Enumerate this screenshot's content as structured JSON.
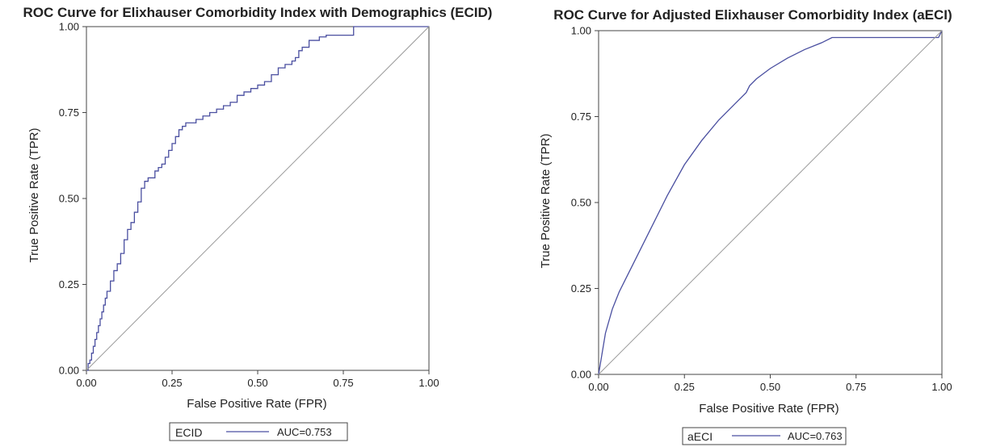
{
  "chart_data": [
    {
      "type": "line",
      "title": "ROC Curve for Elixhauser Comorbidity Index with Demographics (ECID)",
      "xlabel": "False Positive Rate (FPR)",
      "ylabel": "True Positive Rate (TPR)",
      "xlim": [
        0,
        1
      ],
      "ylim": [
        0,
        1
      ],
      "xticks": [
        "0.00",
        "0.25",
        "0.50",
        "0.75",
        "1.00"
      ],
      "yticks": [
        "0.00",
        "0.25",
        "0.50",
        "0.75",
        "1.00"
      ],
      "grid": false,
      "legend_placement": "bottom",
      "series": [
        {
          "name": "ECID",
          "color": "#4a4fa0",
          "step": true,
          "x": [
            0,
            0.005,
            0.01,
            0.015,
            0.02,
            0.025,
            0.03,
            0.035,
            0.04,
            0.045,
            0.05,
            0.055,
            0.06,
            0.07,
            0.08,
            0.09,
            0.1,
            0.11,
            0.12,
            0.13,
            0.14,
            0.15,
            0.16,
            0.17,
            0.18,
            0.19,
            0.2,
            0.21,
            0.22,
            0.23,
            0.24,
            0.25,
            0.26,
            0.27,
            0.28,
            0.29,
            0.3,
            0.31,
            0.32,
            0.34,
            0.36,
            0.38,
            0.4,
            0.42,
            0.44,
            0.46,
            0.48,
            0.5,
            0.52,
            0.54,
            0.56,
            0.58,
            0.6,
            0.61,
            0.62,
            0.63,
            0.65,
            0.68,
            0.7,
            0.74,
            0.77,
            0.78,
            0.8,
            0.9,
            1.0
          ],
          "y": [
            0,
            0.02,
            0.03,
            0.05,
            0.07,
            0.09,
            0.11,
            0.13,
            0.15,
            0.17,
            0.19,
            0.21,
            0.23,
            0.26,
            0.29,
            0.31,
            0.34,
            0.38,
            0.41,
            0.43,
            0.46,
            0.49,
            0.53,
            0.55,
            0.56,
            0.56,
            0.58,
            0.59,
            0.6,
            0.62,
            0.64,
            0.66,
            0.68,
            0.7,
            0.71,
            0.72,
            0.72,
            0.72,
            0.73,
            0.74,
            0.75,
            0.76,
            0.77,
            0.78,
            0.8,
            0.81,
            0.82,
            0.83,
            0.84,
            0.86,
            0.88,
            0.89,
            0.9,
            0.91,
            0.93,
            0.94,
            0.96,
            0.97,
            0.975,
            0.975,
            0.975,
            1.0,
            1.0,
            1.0,
            1.0
          ]
        },
        {
          "name": "",
          "color": "#999999",
          "reference": true,
          "x": [
            0,
            1
          ],
          "y": [
            0,
            1
          ]
        }
      ],
      "legend": {
        "entry": "ECID",
        "auc_text": "AUC=0.753"
      }
    },
    {
      "type": "line",
      "title": "ROC Curve for Adjusted Elixhauser Comorbidity Index (aECI)",
      "xlabel": "False Positive Rate (FPR)",
      "ylabel": "True Positive Rate (TPR)",
      "xlim": [
        0,
        1
      ],
      "ylim": [
        0,
        1
      ],
      "xticks": [
        "0.00",
        "0.25",
        "0.50",
        "0.75",
        "1.00"
      ],
      "yticks": [
        "0.00",
        "0.25",
        "0.50",
        "0.75",
        "1.00"
      ],
      "grid": false,
      "legend_placement": "bottom",
      "series": [
        {
          "name": "aECI",
          "color": "#4a4fa0",
          "step": false,
          "x": [
            0,
            0.01,
            0.02,
            0.04,
            0.06,
            0.08,
            0.1,
            0.15,
            0.2,
            0.25,
            0.3,
            0.35,
            0.4,
            0.43,
            0.44,
            0.46,
            0.5,
            0.55,
            0.6,
            0.65,
            0.68,
            0.7,
            0.8,
            0.9,
            0.99,
            1.0
          ],
          "y": [
            0,
            0.06,
            0.12,
            0.19,
            0.24,
            0.28,
            0.32,
            0.42,
            0.52,
            0.61,
            0.68,
            0.74,
            0.79,
            0.82,
            0.84,
            0.86,
            0.89,
            0.92,
            0.945,
            0.965,
            0.98,
            0.98,
            0.98,
            0.98,
            0.98,
            1.0
          ]
        },
        {
          "name": "",
          "color": "#999999",
          "reference": true,
          "x": [
            0,
            1
          ],
          "y": [
            0,
            1
          ]
        }
      ],
      "legend": {
        "entry": "aECI",
        "auc_text": "AUC=0.763"
      }
    }
  ]
}
